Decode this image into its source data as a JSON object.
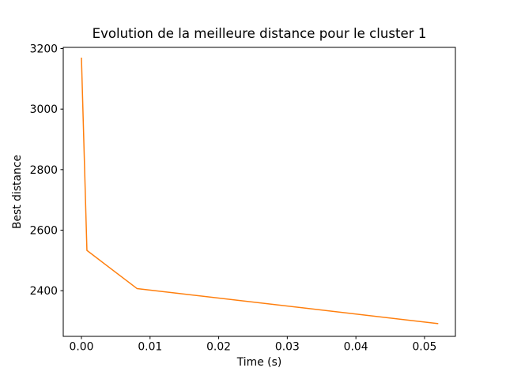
{
  "figure": {
    "background": "#ffffff",
    "text_color": "#000000",
    "spine_color": "#000000"
  },
  "chart_data": {
    "type": "line",
    "title": "Evolution de la meilleure distance pour le cluster 1",
    "xlabel": "Time (s)",
    "ylabel": "Best distance",
    "grid": false,
    "legend": null,
    "xlim": [
      -0.00265,
      0.0545
    ],
    "ylim": [
      2249,
      3204
    ],
    "xticks": [
      0.0,
      0.01,
      0.02,
      0.03,
      0.04,
      0.05
    ],
    "xtick_labels": [
      "0.00",
      "0.01",
      "0.02",
      "0.03",
      "0.04",
      "0.05"
    ],
    "yticks": [
      2400,
      2600,
      2800,
      3000,
      3200
    ],
    "ytick_labels": [
      "2400",
      "2600",
      "2800",
      "3000",
      "3200"
    ],
    "series": [
      {
        "name": "best-distance",
        "color": "#ff7f0e",
        "x": [
          0.0,
          0.0008,
          0.0081,
          0.052
        ],
        "y": [
          3170,
          2533,
          2407,
          2291
        ]
      }
    ]
  }
}
